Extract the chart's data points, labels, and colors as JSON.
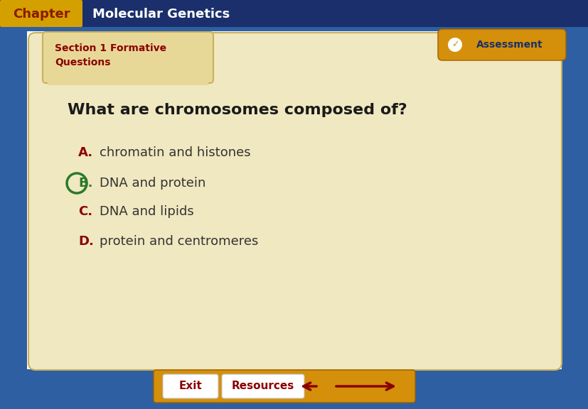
{
  "bg_color": "#2e5fa3",
  "header_bg": "#1a2f6b",
  "chapter_label": "Chapter",
  "chapter_label_bg": "#d4a000",
  "title": "Molecular Genetics",
  "section_label_line1": "Section 1 Formative",
  "section_label_line2": "Questions",
  "section_label_color": "#8b0000",
  "section_tab_color": "#e8d898",
  "main_panel_color": "#f0e8c0",
  "main_panel_edge": "#c8b060",
  "question": "What are chromosomes composed of?",
  "answers": [
    {
      "letter": "A.",
      "text": "chromatin and histones",
      "letter_color": "#8b0000",
      "text_color": "#333333",
      "circled": false
    },
    {
      "letter": "B.",
      "text": "DNA and protein",
      "letter_color": "#2a7a2a",
      "text_color": "#333333",
      "circled": true
    },
    {
      "letter": "C.",
      "text": "DNA and lipids",
      "letter_color": "#8b0000",
      "text_color": "#333333",
      "circled": false
    },
    {
      "letter": "D.",
      "text": "protein and centromeres",
      "letter_color": "#8b0000",
      "text_color": "#333333",
      "circled": false
    }
  ],
  "assessment_btn_color": "#d4900a",
  "assessment_text": "Assessment",
  "assessment_check_color": "#ffffff",
  "exit_btn_color": "#d4900a",
  "exit_inner_color": "#ffffff",
  "exit_text": "Exit",
  "resources_inner_color": "#ffffff",
  "resources_text": "Resources",
  "arrow_color": "#8b0000",
  "bottom_bar_color": "#d4900a"
}
